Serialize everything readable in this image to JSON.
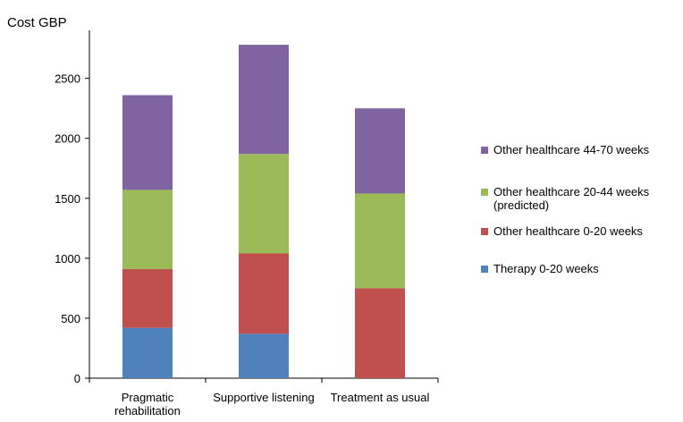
{
  "chart_data": {
    "type": "stacked_bar",
    "y_label": "Cost GBP",
    "categories": [
      "Pragmatic rehabilitation",
      "Supportive listening",
      "Treatment as usual"
    ],
    "series": [
      {
        "name": "Therapy 0-20 weeks",
        "color": "#4f81bd",
        "values": [
          420,
          370,
          0
        ]
      },
      {
        "name": "Other healthcare 0-20 weeks",
        "color": "#c0504d",
        "values": [
          490,
          670,
          750
        ]
      },
      {
        "name": "Other healthcare 20-44 weeks (predicted)",
        "color": "#9bbb59",
        "values": [
          660,
          830,
          790
        ]
      },
      {
        "name": "Other healthcare 44-70 weeks",
        "color": "#8064a2",
        "values": [
          790,
          910,
          710
        ]
      }
    ],
    "ylim": [
      0,
      2900
    ],
    "yticks": [
      0,
      500,
      1000,
      1500,
      2000,
      2500
    ],
    "grid": false,
    "legend": "right"
  }
}
